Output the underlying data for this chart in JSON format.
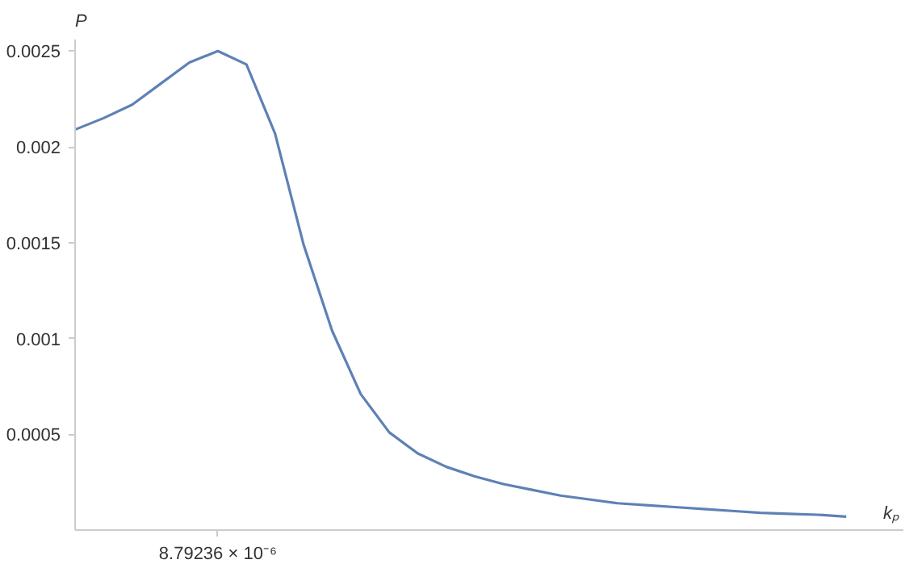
{
  "chart_data": {
    "type": "line",
    "xlabel": "kₚ",
    "ylabel": "P",
    "categories": [
      null,
      null,
      null,
      null,
      null,
      null,
      null,
      null,
      null,
      null,
      null,
      null,
      null,
      null,
      null,
      null,
      null,
      null,
      null,
      null,
      null,
      null,
      null,
      null,
      null,
      null,
      null,
      null
    ],
    "series": [
      {
        "color": "#5e81b5",
        "values": [
          0.00209,
          0.00215,
          0.00222,
          0.00233,
          0.00244,
          0.0025,
          0.00243,
          0.00207,
          0.00149,
          0.00104,
          0.00071,
          0.00051,
          0.0004,
          0.00033,
          0.00028,
          0.00024,
          0.00021,
          0.00018,
          0.00016,
          0.00014,
          0.00013,
          0.00012,
          0.00011,
          0.0001,
          9e-05,
          8.5e-05,
          8e-05,
          7e-05
        ]
      }
    ],
    "annotations": [
      "8.79236 × 10⁻⁶"
    ],
    "ylim": [
      0,
      0.00256
    ],
    "yticks": [
      {
        "value": 0.0005,
        "label": "0.0005"
      },
      {
        "value": 0.001,
        "label": "0.001"
      },
      {
        "value": 0.0015,
        "label": "0.0015"
      },
      {
        "value": 0.002,
        "label": "0.002"
      },
      {
        "value": 0.0025,
        "label": "0.0025"
      }
    ],
    "grid": false,
    "marker": "none",
    "line_style": "solid"
  }
}
